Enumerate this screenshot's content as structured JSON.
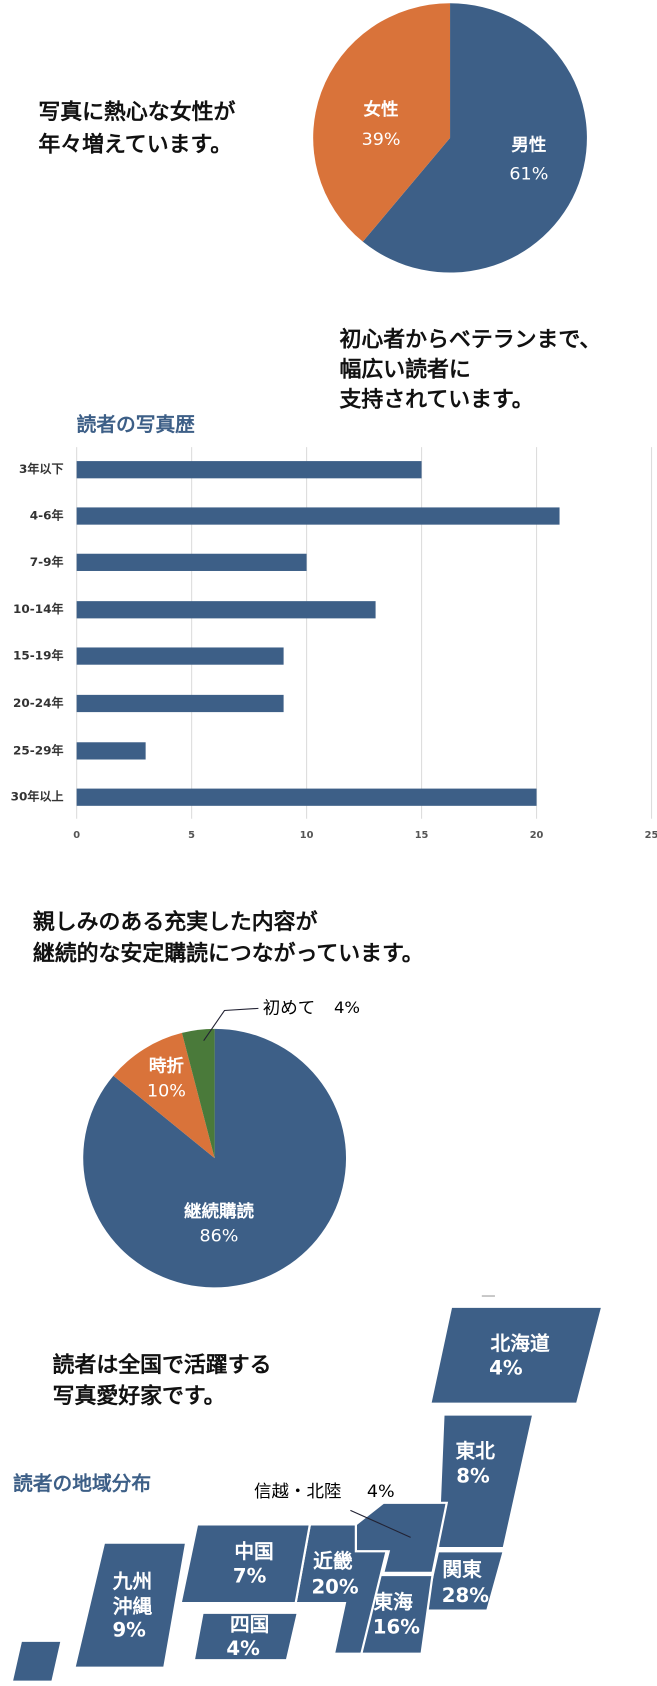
{
  "chart_data": [
    {
      "type": "pie",
      "annotation": [
        "写真に熱心な女性が",
        "年々増えています。"
      ],
      "categories": [
        "男性",
        "女性"
      ],
      "values": [
        61,
        39
      ],
      "value_labels": [
        "61%",
        "39%"
      ],
      "colors": [
        "#3d5f87",
        "#d9733a"
      ]
    },
    {
      "type": "bar",
      "annotation": [
        "初心者からベテランまで、",
        "幅広い読者に",
        "支持されています。"
      ],
      "title": "読者の写真歴",
      "categories": [
        "3年以下",
        "4-6年",
        "7-9年",
        "10-14年",
        "15-19年",
        "20-24年",
        "25-29年",
        "30年以上"
      ],
      "values": [
        15,
        21,
        10,
        13,
        9,
        9,
        3,
        20
      ],
      "color": "#3d5f87",
      "xlim": [
        0,
        25
      ],
      "xticks": [
        0,
        5,
        10,
        15,
        20,
        25
      ],
      "grid": true
    },
    {
      "type": "pie",
      "annotation": [
        "親しみのある充実した内容が",
        "継続的な安定購読につながっています。"
      ],
      "categories": [
        "継続購読",
        "時折",
        "初めて"
      ],
      "values": [
        86,
        10,
        4
      ],
      "value_labels": [
        "86%",
        "10%",
        "4%"
      ],
      "colors": [
        "#3d5f87",
        "#d9733a",
        "#4a7a3a"
      ]
    },
    {
      "type": "map",
      "annotation": [
        "読者は全国で活躍する",
        "写真愛好家です。"
      ],
      "title": "読者の地域分布",
      "categories": [
        [
          "北海道"
        ],
        [
          "東北"
        ],
        [
          "信越・北陸"
        ],
        [
          "関東"
        ],
        [
          "東海"
        ],
        [
          "近畿"
        ],
        [
          "中国"
        ],
        [
          "四国"
        ],
        [
          "九州",
          "沖縄"
        ]
      ],
      "values": [
        4,
        8,
        4,
        28,
        16,
        20,
        7,
        4,
        9
      ],
      "value_labels": [
        "4%",
        "8%",
        "4%",
        "28%",
        "16%",
        "20%",
        "7%",
        "4%",
        "9%"
      ],
      "color": "#3d5f87"
    }
  ]
}
